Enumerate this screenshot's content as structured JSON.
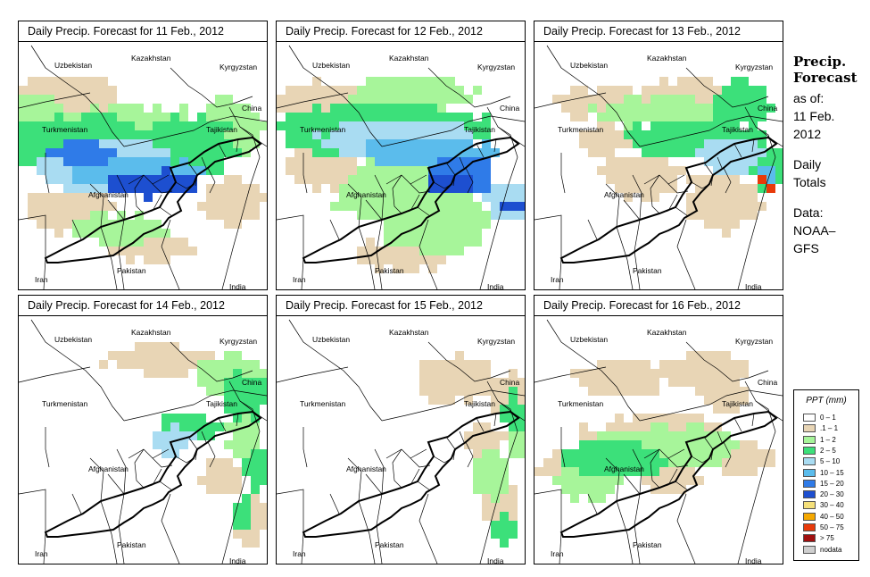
{
  "panels": [
    {
      "title": "Daily Precip. Forecast for  11 Feb., 2012",
      "day": 0
    },
    {
      "title": "Daily Precip. Forecast for  12 Feb., 2012",
      "day": 1
    },
    {
      "title": "Daily Precip. Forecast for  13 Feb., 2012",
      "day": 2
    },
    {
      "title": "Daily Precip. Forecast for  14 Feb., 2012",
      "day": 3
    },
    {
      "title": "Daily Precip. Forecast for  15 Feb., 2012",
      "day": 4
    },
    {
      "title": "Daily Precip. Forecast for  16 Feb., 2012",
      "day": 5
    }
  ],
  "place_labels": {
    "uzbekistan": "Uzbekistan",
    "kazakhstan": "Kazakhstan",
    "kyrgyzstan": "Kyrgyzstan",
    "turkmenistan": "Turkmenistan",
    "tajikistan": "Tajikistan",
    "china": "China",
    "afghanistan": "Afghanistan",
    "iran": "Iran",
    "pakistan": "Pakistan",
    "india": "India"
  },
  "side_info": {
    "heading_line1": "Precip.",
    "heading_line2": "Forecast",
    "as_of": "as of:",
    "date_line1": "11 Feb.",
    "date_line2": "2012",
    "totals_line1": "Daily",
    "totals_line2": "Totals",
    "data_line1": "Data:",
    "data_line2": "NOAA–",
    "data_line3": "GFS"
  },
  "legend": {
    "title": "PPT (mm)",
    "items": [
      {
        "label": "0 – 1",
        "color": "#ffffff"
      },
      {
        "label": ".1 – 1",
        "color": "#e8d5b5"
      },
      {
        "label": "1 – 2",
        "color": "#a7f59a"
      },
      {
        "label": "2 – 5",
        "color": "#3ce07a"
      },
      {
        "label": "5 – 10",
        "color": "#a9dcf2"
      },
      {
        "label": "10 – 15",
        "color": "#5bbcec"
      },
      {
        "label": "15 – 20",
        "color": "#2f7be8"
      },
      {
        "label": "20 – 30",
        "color": "#1d4fd0"
      },
      {
        "label": "30 – 40",
        "color": "#f5e07a"
      },
      {
        "label": "40 – 50",
        "color": "#f5a800"
      },
      {
        "label": "50 – 75",
        "color": "#e83a0a"
      },
      {
        "label": "> 75",
        "color": "#a01010"
      },
      {
        "label": "nodata",
        "color": "#cfcfcf"
      }
    ]
  }
}
